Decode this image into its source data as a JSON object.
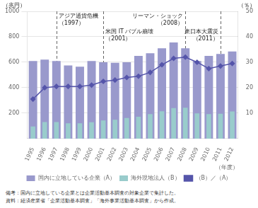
{
  "chart_data": {
    "type": "bar",
    "categories": [
      1995,
      1996,
      1997,
      1998,
      1999,
      2000,
      2001,
      2002,
      2003,
      2004,
      2005,
      2006,
      2007,
      2008,
      2009,
      2010,
      2011,
      2012
    ],
    "series": [
      {
        "name": "国内に立地している企業（A）",
        "color": "#9999cc",
        "values": [
          610,
          620,
          610,
          575,
          565,
          610,
          600,
          595,
          600,
          650,
          670,
          710,
          755,
          710,
          610,
          650,
          665,
          685
        ]
      },
      {
        "name": "海外現地法人（B）",
        "color": "#99cccc",
        "values": [
          95,
          130,
          130,
          120,
          120,
          128,
          143,
          148,
          162,
          172,
          192,
          215,
          240,
          242,
          198,
          192,
          195,
          213
        ]
      },
      {
        "name": "（B）／（A）",
        "type": "line",
        "color": "#5555aa",
        "marker": "diamond",
        "axis": "y2",
        "values": [
          15.5,
          20.0,
          20.5,
          20.5,
          20.5,
          21.0,
          22.5,
          23.0,
          24.0,
          24.5,
          26.0,
          29.0,
          31.5,
          32.0,
          30.0,
          27.5,
          28.5,
          29.5
        ]
      }
    ],
    "ylim": [
      0,
      1000
    ],
    "yticks": [
      200,
      400,
      600,
      800,
      1000
    ],
    "y2lim": [
      0,
      50
    ],
    "y2ticks": [
      10,
      20,
      30,
      40,
      50
    ],
    "ylabel": "（兆円）",
    "y2label": "（％）",
    "xlabel": "（年度）",
    "grid": true,
    "legend": "bottom",
    "annotations": [
      {
        "x": 1997,
        "text": "アジア通貨危機\n（1997）"
      },
      {
        "x": 2001,
        "text": "米国 IT バブル崩壊\n（2001）"
      },
      {
        "x": 2008,
        "text": "リーマン・ショック\n（2008）"
      },
      {
        "x": 2011,
        "text": "東日本大震災\n（2011）"
      }
    ],
    "notes": [
      "備考：国内に立地している企業とは企業活動基本調査の対象企業で集計した。",
      "資料：経済産業省「企業活動基本調査」「海外事業活動基本調査」から作成。"
    ]
  }
}
